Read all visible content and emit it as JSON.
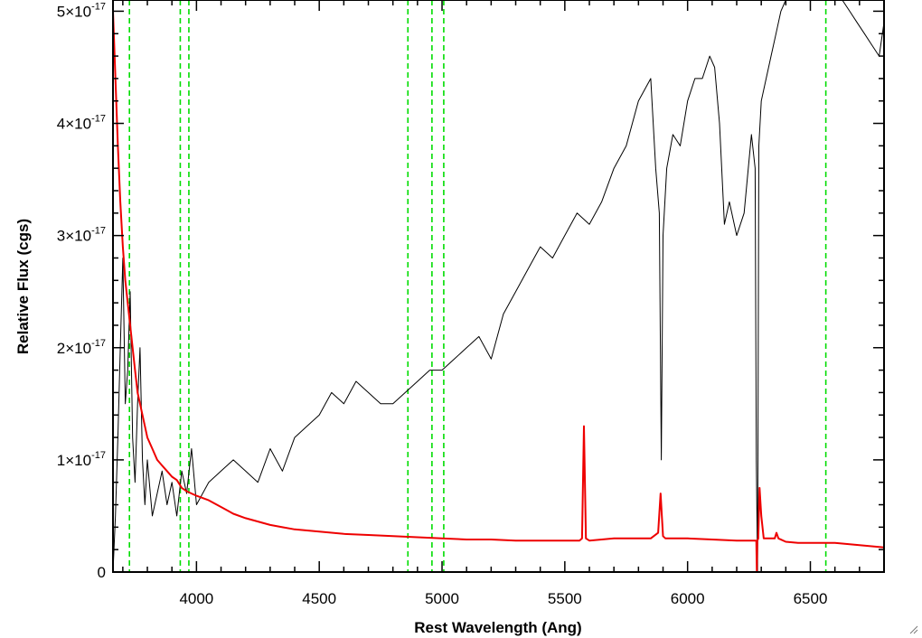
{
  "chart_data": {
    "type": "line",
    "xlabel": "Rest Wavelength (Ang)",
    "ylabel": "Relative Flux (cgs)",
    "xlim": [
      3660,
      6800
    ],
    "ylim": [
      0,
      5.1
    ],
    "y_unit_exponent": "-17",
    "x_ticks": [
      {
        "value": 4000,
        "label": "4000"
      },
      {
        "value": 4500,
        "label": "4500"
      },
      {
        "value": 5000,
        "label": "5000"
      },
      {
        "value": 5500,
        "label": "5500"
      },
      {
        "value": 6000,
        "label": "6000"
      },
      {
        "value": 6500,
        "label": "6500"
      }
    ],
    "y_ticks": [
      {
        "value": 0,
        "mant": "0",
        "exp": ""
      },
      {
        "value": 1,
        "mant": "1×10",
        "exp": "-17"
      },
      {
        "value": 2,
        "mant": "2×10",
        "exp": "-17"
      },
      {
        "value": 3,
        "mant": "3×10",
        "exp": "-17"
      },
      {
        "value": 4,
        "mant": "4×10",
        "exp": "-17"
      },
      {
        "value": 5,
        "mant": "5×10",
        "exp": "-17"
      }
    ],
    "x_minor_step": 100,
    "y_minor_step": 0.2,
    "reference_lines": [
      3727,
      3934,
      3969,
      4861,
      4959,
      5007,
      6563
    ],
    "series": [
      {
        "color": "#000000",
        "x": [
          3660,
          3670,
          3680,
          3690,
          3700,
          3710,
          3720,
          3730,
          3740,
          3750,
          3760,
          3770,
          3780,
          3790,
          3800,
          3820,
          3840,
          3860,
          3880,
          3900,
          3920,
          3940,
          3960,
          3980,
          4000,
          4050,
          4100,
          4150,
          4200,
          4250,
          4300,
          4350,
          4400,
          4450,
          4500,
          4550,
          4600,
          4650,
          4700,
          4750,
          4800,
          4850,
          4900,
          4950,
          5000,
          5050,
          5100,
          5150,
          5200,
          5250,
          5300,
          5350,
          5400,
          5450,
          5500,
          5550,
          5600,
          5650,
          5700,
          5750,
          5800,
          5850,
          5870,
          5885,
          5893,
          5900,
          5915,
          5940,
          5970,
          6000,
          6030,
          6060,
          6090,
          6110,
          6130,
          6150,
          6170,
          6200,
          6230,
          6260,
          6275,
          6280,
          6285,
          6290,
          6300,
          6320,
          6340,
          6360,
          6380,
          6400,
          6420,
          6450,
          6480,
          6510,
          6540,
          6570,
          6600,
          6630,
          6660,
          6690,
          6720,
          6750,
          6780,
          6800
        ],
        "y": [
          0.0,
          0.5,
          1.2,
          2.0,
          2.8,
          1.5,
          1.8,
          2.5,
          1.2,
          0.8,
          1.5,
          2.0,
          1.0,
          0.6,
          1.0,
          0.5,
          0.7,
          0.9,
          0.6,
          0.8,
          0.5,
          0.9,
          0.7,
          1.1,
          0.6,
          0.8,
          0.9,
          1.0,
          0.9,
          0.8,
          1.1,
          0.9,
          1.2,
          1.3,
          1.4,
          1.6,
          1.5,
          1.7,
          1.6,
          1.5,
          1.5,
          1.6,
          1.7,
          1.8,
          1.8,
          1.9,
          2.0,
          2.1,
          1.9,
          2.3,
          2.5,
          2.7,
          2.9,
          2.8,
          3.0,
          3.2,
          3.1,
          3.3,
          3.6,
          3.8,
          4.2,
          4.4,
          3.6,
          3.2,
          1.0,
          3.0,
          3.6,
          3.9,
          3.8,
          4.2,
          4.4,
          4.4,
          4.6,
          4.5,
          4.0,
          3.1,
          3.3,
          3.0,
          3.2,
          3.9,
          3.6,
          1.0,
          0.0,
          3.8,
          4.2,
          4.4,
          4.6,
          4.8,
          5.0,
          5.1,
          5.1,
          5.1,
          5.1,
          5.1,
          5.1,
          5.1,
          5.1,
          5.1,
          5.0,
          4.9,
          4.8,
          4.7,
          4.6,
          4.9
        ]
      },
      {
        "color": "#ee0000",
        "x": [
          3660,
          3670,
          3680,
          3690,
          3700,
          3710,
          3720,
          3730,
          3740,
          3750,
          3760,
          3780,
          3800,
          3820,
          3840,
          3860,
          3880,
          3900,
          3920,
          3940,
          3960,
          3980,
          4000,
          4050,
          4100,
          4150,
          4200,
          4250,
          4300,
          4350,
          4400,
          4500,
          4600,
          4700,
          4800,
          4900,
          5000,
          5100,
          5200,
          5300,
          5400,
          5500,
          5560,
          5570,
          5578,
          5586,
          5600,
          5650,
          5700,
          5750,
          5800,
          5850,
          5880,
          5890,
          5895,
          5900,
          5910,
          5950,
          6000,
          6100,
          6200,
          6250,
          6280,
          6282,
          6284,
          6288,
          6293,
          6300,
          6310,
          6330,
          6355,
          6362,
          6370,
          6400,
          6450,
          6500,
          6600,
          6700,
          6800
        ],
        "y": [
          5.0,
          4.4,
          3.8,
          3.3,
          2.9,
          2.6,
          2.4,
          2.2,
          2.0,
          1.8,
          1.6,
          1.4,
          1.2,
          1.1,
          1.0,
          0.95,
          0.9,
          0.85,
          0.82,
          0.75,
          0.72,
          0.7,
          0.68,
          0.64,
          0.58,
          0.52,
          0.48,
          0.45,
          0.42,
          0.4,
          0.38,
          0.36,
          0.34,
          0.33,
          0.32,
          0.31,
          0.3,
          0.29,
          0.29,
          0.28,
          0.28,
          0.28,
          0.28,
          0.3,
          1.3,
          0.3,
          0.28,
          0.29,
          0.3,
          0.3,
          0.3,
          0.3,
          0.35,
          0.7,
          0.5,
          0.32,
          0.3,
          0.3,
          0.3,
          0.29,
          0.28,
          0.28,
          0.28,
          0.0,
          0.28,
          0.3,
          0.75,
          0.5,
          0.3,
          0.3,
          0.3,
          0.35,
          0.3,
          0.27,
          0.26,
          0.26,
          0.26,
          0.24,
          0.22
        ]
      }
    ]
  }
}
